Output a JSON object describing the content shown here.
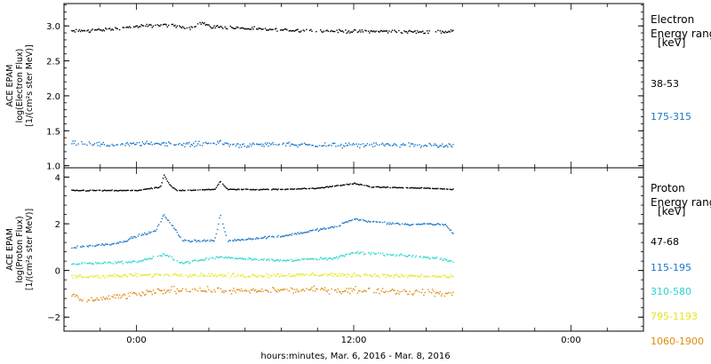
{
  "xaxis_label": "hours:minutes, Mar.  6, 2016 - Mar.  8, 2016",
  "x_ticks": [
    {
      "hour": 0,
      "label": "0:00"
    },
    {
      "hour": 12,
      "label": "12:00"
    },
    {
      "hour": 24,
      "label": "0:00"
    }
  ],
  "chart_data": [
    {
      "type": "scatter",
      "panel": "electron",
      "ylabel_lines": [
        "ACE EPAM",
        "log(Electron Flux)",
        "[1/(cm²s ster MeV)]"
      ],
      "xlim_hours": [
        -4,
        28
      ],
      "ylim": [
        0.97,
        3.32
      ],
      "yticks": [
        1.0,
        1.5,
        2.0,
        2.5,
        3.0
      ],
      "ytick_labels": [
        "1.0",
        "1.5",
        "2.0",
        "2.5",
        "3.0"
      ],
      "legend_title_lines": [
        "Electron",
        "Energy ranges",
        "[keV]"
      ],
      "series": [
        {
          "name": "38-53",
          "color": "#000000",
          "points": [
            [
              -3.6,
              2.93
            ],
            [
              -1.5,
              2.96
            ],
            [
              0,
              3.0
            ],
            [
              1.5,
              3.02
            ],
            [
              3,
              2.98
            ],
            [
              3.6,
              3.06
            ],
            [
              4,
              3.0
            ],
            [
              6,
              2.97
            ],
            [
              8,
              2.95
            ],
            [
              10,
              2.94
            ],
            [
              12,
              2.93
            ],
            [
              14,
              2.93
            ],
            [
              16,
              2.92
            ],
            [
              17.5,
              2.93
            ]
          ]
        },
        {
          "name": "175-315",
          "color": "#1a77c9",
          "points": [
            [
              -3.6,
              1.35
            ],
            [
              -1.5,
              1.3
            ],
            [
              0,
              1.32
            ],
            [
              1.5,
              1.33
            ],
            [
              3,
              1.31
            ],
            [
              4,
              1.34
            ],
            [
              6,
              1.3
            ],
            [
              8,
              1.32
            ],
            [
              10,
              1.3
            ],
            [
              12,
              1.3
            ],
            [
              14,
              1.31
            ],
            [
              16,
              1.3
            ],
            [
              17.5,
              1.29
            ]
          ]
        }
      ]
    },
    {
      "type": "scatter",
      "panel": "proton",
      "ylabel_lines": [
        "ACE EPAM",
        "log(Proton Flux)",
        "[1/(cm²s ster MeV)]"
      ],
      "xlim_hours": [
        -4,
        28
      ],
      "ylim": [
        -2.6,
        4.4
      ],
      "yticks": [
        -2,
        0,
        2,
        4
      ],
      "ytick_labels": [
        "−2",
        "0",
        "2",
        "4"
      ],
      "legend_title_lines": [
        "Proton",
        "Energy ranges",
        "[keV]"
      ],
      "series": [
        {
          "name": "47-68",
          "color": "#000000",
          "points": [
            [
              -3.6,
              3.45
            ],
            [
              0,
              3.45
            ],
            [
              1.3,
              3.6
            ],
            [
              1.5,
              4.1
            ],
            [
              1.8,
              3.7
            ],
            [
              2.2,
              3.45
            ],
            [
              4.3,
              3.5
            ],
            [
              4.6,
              3.85
            ],
            [
              5,
              3.5
            ],
            [
              8,
              3.5
            ],
            [
              10,
              3.55
            ],
            [
              12,
              3.75
            ],
            [
              13,
              3.6
            ],
            [
              16,
              3.55
            ],
            [
              17.5,
              3.5
            ]
          ]
        },
        {
          "name": "115-195",
          "color": "#1a77c9",
          "points": [
            [
              -3.6,
              1.0
            ],
            [
              -1,
              1.2
            ],
            [
              0,
              1.5
            ],
            [
              1,
              1.7
            ],
            [
              1.5,
              2.4
            ],
            [
              2,
              1.9
            ],
            [
              2.5,
              1.3
            ],
            [
              4.3,
              1.3
            ],
            [
              4.6,
              2.4
            ],
            [
              5,
              1.3
            ],
            [
              8,
              1.5
            ],
            [
              11,
              1.9
            ],
            [
              12,
              2.25
            ],
            [
              13,
              2.1
            ],
            [
              15,
              2.0
            ],
            [
              17,
              2.0
            ],
            [
              17.5,
              1.6
            ]
          ]
        },
        {
          "name": "310-580",
          "color": "#2ad6d0",
          "points": [
            [
              -3.6,
              0.3
            ],
            [
              0,
              0.4
            ],
            [
              1.5,
              0.7
            ],
            [
              2.5,
              0.35
            ],
            [
              4.6,
              0.6
            ],
            [
              8,
              0.45
            ],
            [
              11,
              0.55
            ],
            [
              12,
              0.8
            ],
            [
              14,
              0.7
            ],
            [
              16,
              0.6
            ],
            [
              17.5,
              0.4
            ]
          ]
        },
        {
          "name": "795-1193",
          "color": "#e5e61a",
          "points": [
            [
              -3.6,
              -0.25
            ],
            [
              2,
              -0.15
            ],
            [
              6,
              -0.2
            ],
            [
              10,
              -0.15
            ],
            [
              14,
              -0.2
            ],
            [
              17.5,
              -0.25
            ]
          ]
        },
        {
          "name": "1060-1900",
          "color": "#e08a10",
          "points": [
            [
              -3.6,
              -1.0
            ],
            [
              -3,
              -1.3
            ],
            [
              2,
              -0.8
            ],
            [
              6,
              -0.85
            ],
            [
              10,
              -0.8
            ],
            [
              14,
              -0.85
            ],
            [
              17.5,
              -1.0
            ]
          ]
        }
      ]
    }
  ]
}
